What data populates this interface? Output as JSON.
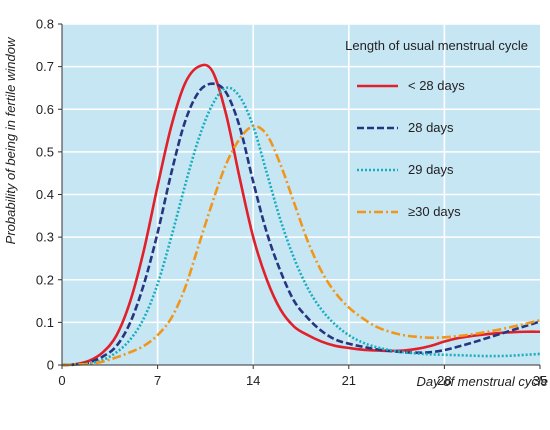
{
  "chart_data": {
    "type": "line",
    "ylabel": "Probability of being in fertile window",
    "xlabel": "Day of menstrual cycle",
    "xlim": [
      0,
      35
    ],
    "ylim": [
      0,
      0.8
    ],
    "x_ticks": [
      0,
      7,
      14,
      21,
      28,
      35
    ],
    "y_ticks": [
      0,
      0.1,
      0.2,
      0.3,
      0.4,
      0.5,
      0.6,
      0.7,
      0.8
    ],
    "y_tick_labels": [
      "0",
      "0.1",
      "0.2",
      "0.3",
      "0.4",
      "0.5",
      "0.6",
      "0.7",
      "0.8"
    ],
    "grid": true,
    "background_color": "#c7e6f4",
    "legend": {
      "title": "Length of usual menstrual cycle",
      "placement": "top-right"
    },
    "series": [
      {
        "name": "< 28 days",
        "color": "#e0202a",
        "dash": "solid",
        "x": [
          0,
          1,
          2,
          3,
          4,
          5,
          6,
          7,
          8,
          9,
          10,
          11,
          12,
          13,
          14,
          15,
          16,
          17,
          18,
          19,
          20,
          21,
          22,
          23,
          24,
          25,
          26,
          27,
          28,
          29,
          30,
          31,
          32,
          33,
          34,
          35
        ],
        "y": [
          0,
          0.002,
          0.01,
          0.03,
          0.07,
          0.15,
          0.27,
          0.42,
          0.56,
          0.66,
          0.7,
          0.69,
          0.59,
          0.44,
          0.3,
          0.2,
          0.13,
          0.09,
          0.07,
          0.055,
          0.045,
          0.04,
          0.036,
          0.034,
          0.033,
          0.034,
          0.038,
          0.045,
          0.055,
          0.063,
          0.068,
          0.072,
          0.075,
          0.077,
          0.078,
          0.078
        ]
      },
      {
        "name": "28 days",
        "color": "#25357f",
        "dash": "dashed",
        "x": [
          0,
          1,
          2,
          3,
          4,
          5,
          6,
          7,
          8,
          9,
          10,
          11,
          12,
          13,
          14,
          15,
          16,
          17,
          18,
          19,
          20,
          21,
          22,
          23,
          24,
          25,
          26,
          27,
          28,
          29,
          30,
          31,
          32,
          33,
          34,
          35
        ],
        "y": [
          0,
          0.001,
          0.006,
          0.02,
          0.045,
          0.1,
          0.19,
          0.31,
          0.45,
          0.57,
          0.64,
          0.66,
          0.64,
          0.56,
          0.43,
          0.31,
          0.22,
          0.15,
          0.11,
          0.08,
          0.06,
          0.05,
          0.043,
          0.037,
          0.033,
          0.03,
          0.029,
          0.03,
          0.035,
          0.043,
          0.052,
          0.062,
          0.072,
          0.082,
          0.092,
          0.102
        ]
      },
      {
        "name": "29 days",
        "color": "#19aebd",
        "dash": "dotted",
        "x": [
          0,
          1,
          2,
          3,
          4,
          5,
          6,
          7,
          8,
          9,
          10,
          11,
          12,
          13,
          14,
          15,
          16,
          17,
          18,
          19,
          20,
          21,
          22,
          23,
          24,
          25,
          26,
          27,
          28,
          29,
          30,
          31,
          32,
          33,
          34,
          35
        ],
        "y": [
          0,
          0.001,
          0.004,
          0.012,
          0.03,
          0.06,
          0.11,
          0.19,
          0.3,
          0.42,
          0.53,
          0.61,
          0.65,
          0.63,
          0.56,
          0.45,
          0.34,
          0.25,
          0.18,
          0.13,
          0.095,
          0.07,
          0.053,
          0.042,
          0.035,
          0.03,
          0.027,
          0.025,
          0.024,
          0.023,
          0.022,
          0.021,
          0.021,
          0.022,
          0.024,
          0.026
        ]
      },
      {
        "name": "≥30 days",
        "color": "#f0971b",
        "dash": "dashdot",
        "x": [
          0,
          1,
          2,
          3,
          4,
          5,
          6,
          7,
          8,
          9,
          10,
          11,
          12,
          13,
          14,
          15,
          16,
          17,
          18,
          19,
          20,
          21,
          22,
          23,
          24,
          25,
          26,
          27,
          28,
          29,
          30,
          31,
          32,
          33,
          34,
          35
        ],
        "y": [
          0,
          0.001,
          0.003,
          0.008,
          0.018,
          0.03,
          0.045,
          0.07,
          0.11,
          0.18,
          0.28,
          0.38,
          0.47,
          0.53,
          0.56,
          0.54,
          0.47,
          0.38,
          0.29,
          0.22,
          0.17,
          0.135,
          0.11,
          0.09,
          0.078,
          0.07,
          0.066,
          0.064,
          0.065,
          0.068,
          0.072,
          0.077,
          0.083,
          0.09,
          0.097,
          0.105
        ]
      }
    ]
  }
}
